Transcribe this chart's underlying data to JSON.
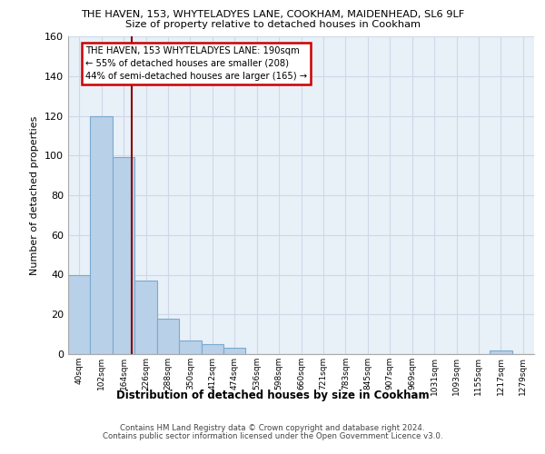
{
  "title_line1": "THE HAVEN, 153, WHYTELADYES LANE, COOKHAM, MAIDENHEAD, SL6 9LF",
  "title_line2": "Size of property relative to detached houses in Cookham",
  "xlabel": "Distribution of detached houses by size in Cookham",
  "ylabel": "Number of detached properties",
  "footer_line1": "Contains HM Land Registry data © Crown copyright and database right 2024.",
  "footer_line2": "Contains public sector information licensed under the Open Government Licence v3.0.",
  "bar_labels": [
    "40sqm",
    "102sqm",
    "164sqm",
    "226sqm",
    "288sqm",
    "350sqm",
    "412sqm",
    "474sqm",
    "536sqm",
    "598sqm",
    "660sqm",
    "721sqm",
    "783sqm",
    "845sqm",
    "907sqm",
    "969sqm",
    "1031sqm",
    "1093sqm",
    "1155sqm",
    "1217sqm",
    "1279sqm"
  ],
  "bar_values": [
    40,
    120,
    99,
    37,
    18,
    7,
    5,
    3,
    0,
    0,
    0,
    0,
    0,
    0,
    0,
    0,
    0,
    0,
    0,
    2,
    0
  ],
  "bar_color": "#b8d0e8",
  "bar_edge_color": "#7aaace",
  "grid_color": "#d0d8e8",
  "bg_color": "#e8f0f8",
  "annotation_line1": "THE HAVEN, 153 WHYTELADYES LANE: 190sqm",
  "annotation_line2": "← 55% of detached houses are smaller (208)",
  "annotation_line3": "44% of semi-detached houses are larger (165) →",
  "annotation_box_color": "#ffffff",
  "annotation_box_edge": "#cc0000",
  "vline_color": "#880000",
  "vline_x": 2.35,
  "ylim": [
    0,
    160
  ],
  "yticks": [
    0,
    20,
    40,
    60,
    80,
    100,
    120,
    140,
    160
  ]
}
